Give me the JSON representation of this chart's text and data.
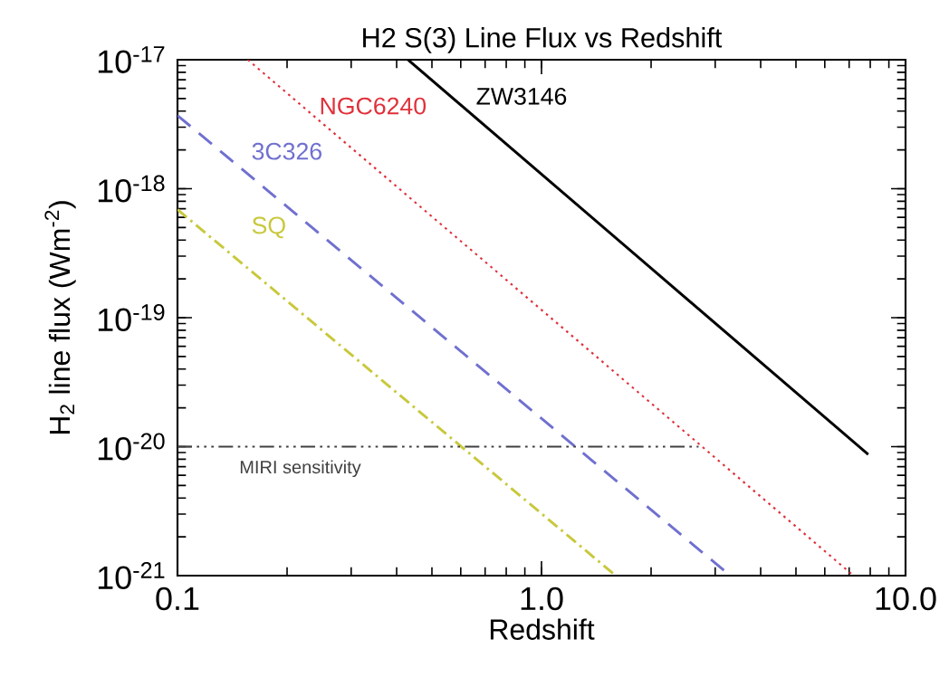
{
  "chart_data": {
    "type": "line",
    "title": "H2 S(3) Line Flux vs Redshift",
    "xlabel": "Redshift",
    "ylabel": "H$_{2}$ line flux (Wm$^{-2}$)",
    "log": "xy",
    "xlim": [
      0.1,
      10
    ],
    "ylim": [
      1e-21,
      1e-17
    ],
    "xticks": [
      {
        "value": 0.1,
        "label": "0.1"
      },
      {
        "value": 1,
        "label": "1.0"
      },
      {
        "value": 10,
        "label": "10.0"
      }
    ],
    "yticks": [
      {
        "value": 1e-21,
        "label": "10$^{-21}$"
      },
      {
        "value": 1e-20,
        "label": "10$^{-20}$"
      },
      {
        "value": 1e-19,
        "label": "10$^{-19}$"
      },
      {
        "value": 1e-18,
        "label": "10$^{-18}$"
      },
      {
        "value": 1e-17,
        "label": "10$^{-17}$"
      }
    ],
    "series": [
      {
        "name": "ZW3146",
        "color": "#000000",
        "line_style": "solid",
        "x": [
          0.43,
          7.9
        ],
        "values": [
          1e-17,
          8.7e-21
        ]
      },
      {
        "name": "NGC6240",
        "color": "#e0303a",
        "line_style": "dotted",
        "x": [
          0.156,
          7.2
        ],
        "values": [
          1e-17,
          1e-21
        ]
      },
      {
        "name": "3C326",
        "color": "#7070d0",
        "line_style": "dashed",
        "x": [
          0.1,
          3.3
        ],
        "values": [
          3.7e-18,
          1e-21
        ]
      },
      {
        "name": "SQ",
        "color": "#c8c83c",
        "line_style": "dashdotted",
        "x": [
          0.1,
          1.6
        ],
        "values": [
          6.9e-19,
          1e-21
        ]
      },
      {
        "name": "MIRI sensitivity",
        "color": "#404040",
        "line_style": "dashdotdotted",
        "x": [
          0.1,
          2.7
        ],
        "values": [
          1e-20,
          1e-20
        ]
      }
    ]
  }
}
